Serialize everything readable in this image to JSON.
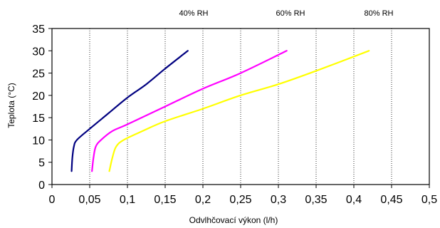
{
  "chart_data": {
    "type": "line",
    "xlabel": "Odvlhčovací výkon (l/h)",
    "ylabel": "Teplota (°C)",
    "xlim": [
      0,
      0.5
    ],
    "ylim": [
      0,
      35
    ],
    "x_ticks": [
      "0",
      "0,05",
      "0,1",
      "0,15",
      "0,2",
      "0,25",
      "0,3",
      "0,35",
      "0,4",
      "0,45",
      "0,5"
    ],
    "x_tick_values": [
      0,
      0.05,
      0.1,
      0.15,
      0.2,
      0.25,
      0.3,
      0.35,
      0.4,
      0.45,
      0.5
    ],
    "y_ticks": [
      "0",
      "5",
      "10",
      "15",
      "20",
      "25",
      "30",
      "35"
    ],
    "y_tick_values": [
      0,
      5,
      10,
      15,
      20,
      25,
      30,
      35
    ],
    "grid": "vertical dotted lines",
    "series": [
      {
        "name": "40% RH",
        "color": "#000080",
        "points": [
          [
            0.026,
            3
          ],
          [
            0.027,
            6
          ],
          [
            0.029,
            8.5
          ],
          [
            0.033,
            10
          ],
          [
            0.05,
            12.5
          ],
          [
            0.075,
            16
          ],
          [
            0.1,
            19.5
          ],
          [
            0.125,
            22.5
          ],
          [
            0.15,
            26
          ],
          [
            0.18,
            30
          ]
        ]
      },
      {
        "name": "60% RH",
        "color": "#FF00FF",
        "points": [
          [
            0.053,
            3
          ],
          [
            0.055,
            6
          ],
          [
            0.058,
            8.5
          ],
          [
            0.065,
            10
          ],
          [
            0.08,
            12
          ],
          [
            0.1,
            13.5
          ],
          [
            0.15,
            17.5
          ],
          [
            0.2,
            21.5
          ],
          [
            0.25,
            25
          ],
          [
            0.311,
            30
          ]
        ]
      },
      {
        "name": "80% RH",
        "color": "#FFFF00",
        "points": [
          [
            0.076,
            3
          ],
          [
            0.08,
            6
          ],
          [
            0.085,
            8.5
          ],
          [
            0.095,
            10
          ],
          [
            0.12,
            12
          ],
          [
            0.15,
            14.2
          ],
          [
            0.2,
            17
          ],
          [
            0.25,
            20
          ],
          [
            0.3,
            22.5
          ],
          [
            0.35,
            25.5
          ],
          [
            0.42,
            30
          ]
        ]
      }
    ]
  }
}
